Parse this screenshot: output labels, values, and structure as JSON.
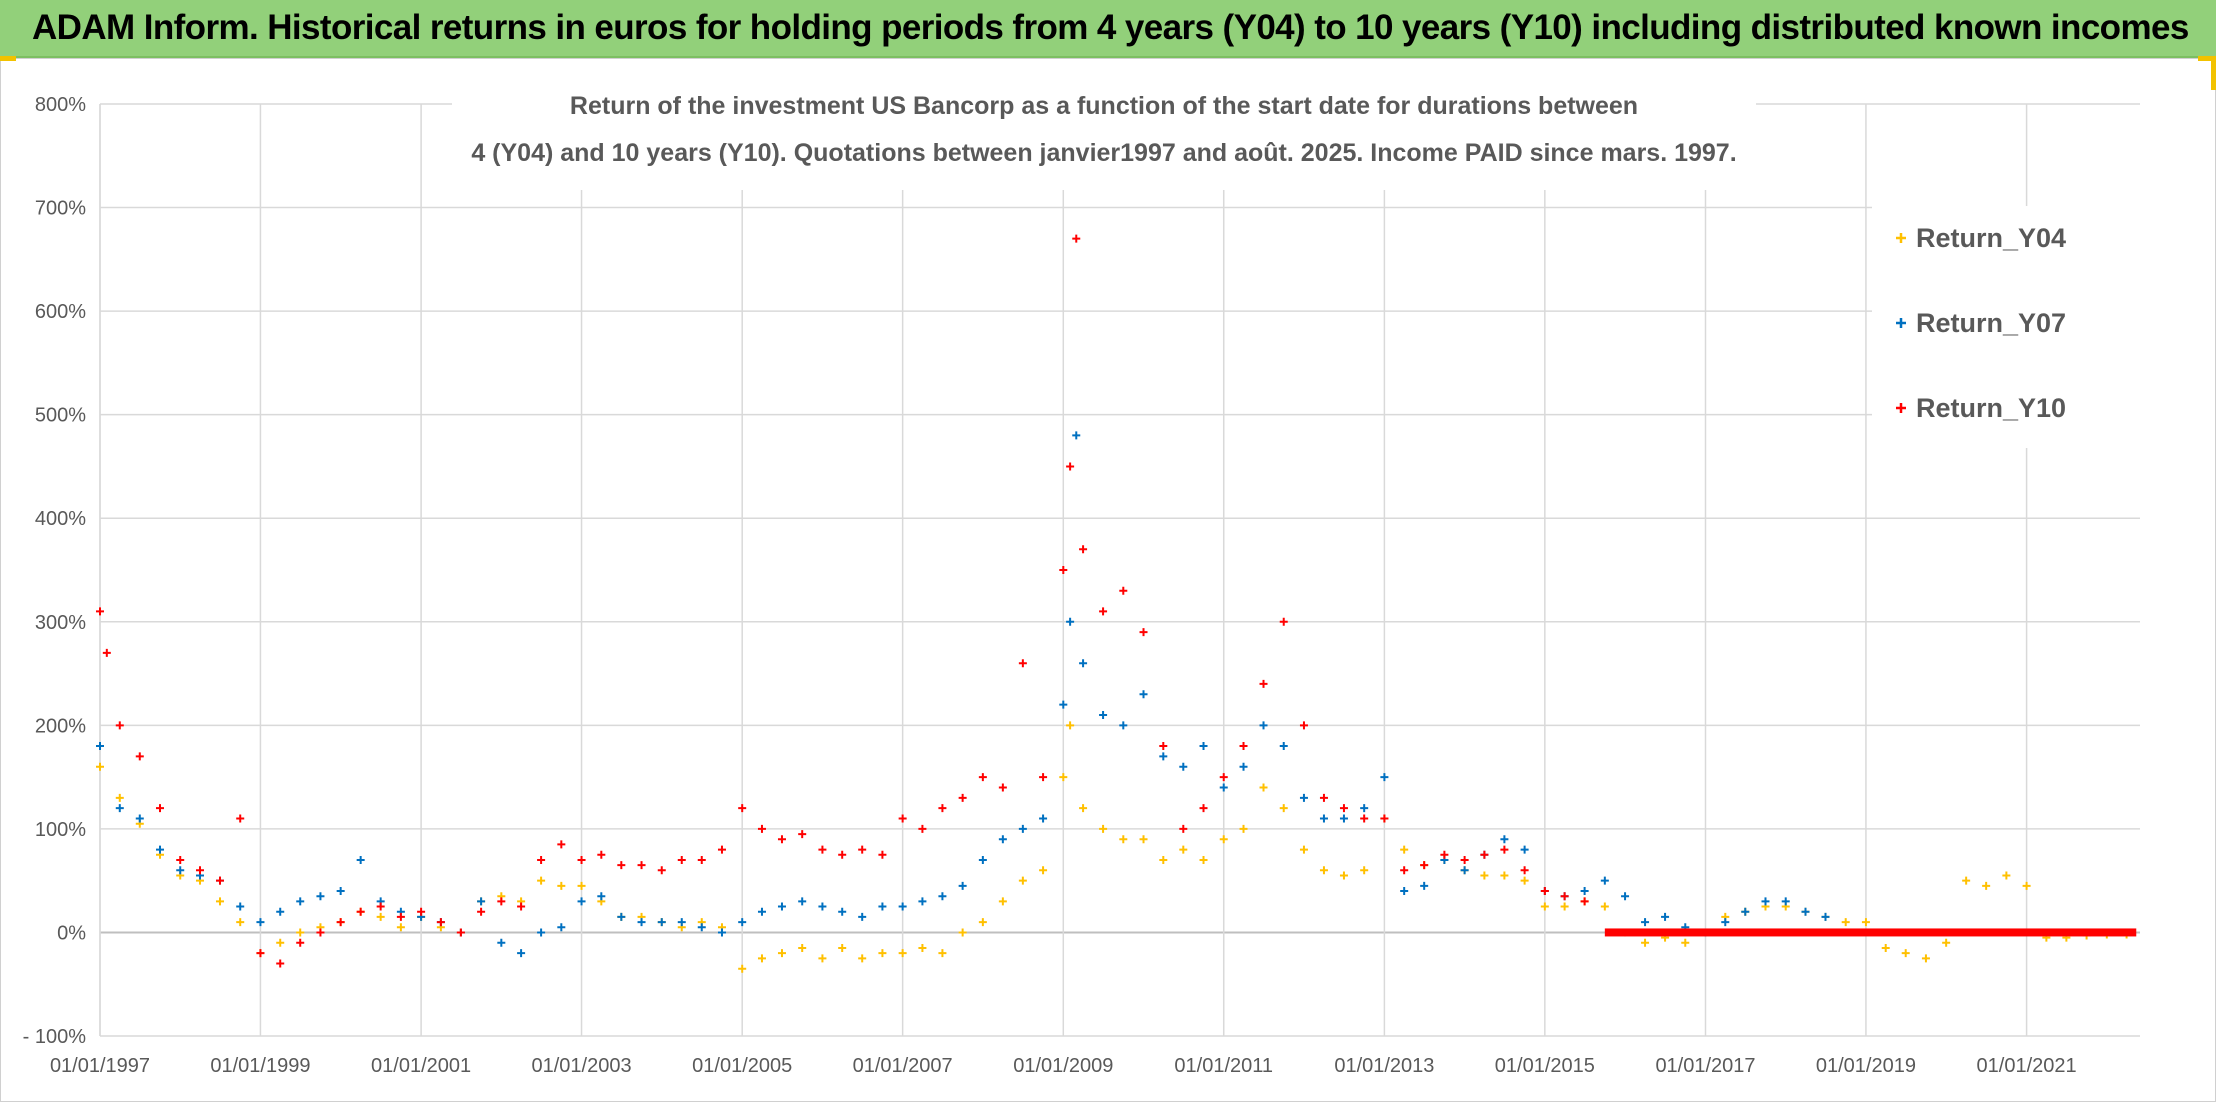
{
  "header": {
    "title": "ADAM Inform. Historical returns in euros for holding periods from 4 years (Y04) to 10 years (Y10) including distributed known incomes"
  },
  "chart_data": {
    "type": "scatter",
    "title_lines": [
      "Return of the investment US Bancorp as a function of the start date for durations between",
      "4 (Y04) and 10 years (Y10). Quotations between janvier1997 and août. 2025. Income PAID since mars. 1997."
    ],
    "xlabel": "",
    "ylabel": "",
    "xlim": [
      "1997-01-01",
      "2022-06-01"
    ],
    "ylim": [
      -100,
      800
    ],
    "y_ticks": [
      -100,
      0,
      100,
      200,
      300,
      400,
      500,
      600,
      700,
      800
    ],
    "y_tick_labels": [
      "- 100%",
      "0%",
      "100%",
      "200%",
      "300%",
      "400%",
      "500%",
      "600%",
      "700%",
      "800%"
    ],
    "x_ticks": [
      "1997-01-01",
      "1999-01-01",
      "2001-01-01",
      "2003-01-01",
      "2005-01-01",
      "2007-01-01",
      "2009-01-01",
      "2011-01-01",
      "2013-01-01",
      "2015-01-01",
      "2017-01-01",
      "2019-01-01",
      "2021-01-01"
    ],
    "x_tick_labels": [
      "01/01/1997",
      "01/01/1999",
      "01/01/2001",
      "01/01/2003",
      "01/01/2005",
      "01/01/2007",
      "01/01/2009",
      "01/01/2011",
      "01/01/2013",
      "01/01/2015",
      "01/01/2017",
      "01/01/2019",
      "01/01/2021"
    ],
    "grid": true,
    "legend_position": "top-right",
    "marker": "+",
    "series": [
      {
        "name": "Return_Y04",
        "color": "#ffc000",
        "points": [
          [
            "1997-01-01",
            160
          ],
          [
            "1997-04-01",
            130
          ],
          [
            "1997-07-01",
            105
          ],
          [
            "1997-10-01",
            75
          ],
          [
            "1998-01-01",
            55
          ],
          [
            "1998-04-01",
            50
          ],
          [
            "1998-07-01",
            30
          ],
          [
            "1998-10-01",
            10
          ],
          [
            "1999-01-01",
            -20
          ],
          [
            "1999-04-01",
            -10
          ],
          [
            "1999-07-01",
            0
          ],
          [
            "1999-10-01",
            5
          ],
          [
            "2000-01-01",
            10
          ],
          [
            "2000-04-01",
            20
          ],
          [
            "2000-07-01",
            15
          ],
          [
            "2000-10-01",
            5
          ],
          [
            "2001-01-01",
            15
          ],
          [
            "2001-04-01",
            5
          ],
          [
            "2001-07-01",
            0
          ],
          [
            "2001-10-01",
            30
          ],
          [
            "2002-01-01",
            35
          ],
          [
            "2002-04-01",
            30
          ],
          [
            "2002-07-01",
            50
          ],
          [
            "2002-10-01",
            45
          ],
          [
            "2003-01-01",
            45
          ],
          [
            "2003-04-01",
            30
          ],
          [
            "2003-07-01",
            15
          ],
          [
            "2003-10-01",
            15
          ],
          [
            "2004-01-01",
            10
          ],
          [
            "2004-04-01",
            5
          ],
          [
            "2004-07-01",
            10
          ],
          [
            "2004-10-01",
            5
          ],
          [
            "2005-01-01",
            -35
          ],
          [
            "2005-04-01",
            -25
          ],
          [
            "2005-07-01",
            -20
          ],
          [
            "2005-10-01",
            -15
          ],
          [
            "2006-01-01",
            -25
          ],
          [
            "2006-04-01",
            -15
          ],
          [
            "2006-07-01",
            -25
          ],
          [
            "2006-10-01",
            -20
          ],
          [
            "2007-01-01",
            -20
          ],
          [
            "2007-04-01",
            -15
          ],
          [
            "2007-07-01",
            -20
          ],
          [
            "2007-10-01",
            0
          ],
          [
            "2008-01-01",
            10
          ],
          [
            "2008-04-01",
            30
          ],
          [
            "2008-07-01",
            50
          ],
          [
            "2008-10-01",
            60
          ],
          [
            "2009-01-01",
            150
          ],
          [
            "2009-02-01",
            200
          ],
          [
            "2009-04-01",
            120
          ],
          [
            "2009-07-01",
            100
          ],
          [
            "2009-10-01",
            90
          ],
          [
            "2010-01-01",
            90
          ],
          [
            "2010-04-01",
            70
          ],
          [
            "2010-07-01",
            80
          ],
          [
            "2010-10-01",
            70
          ],
          [
            "2011-01-01",
            90
          ],
          [
            "2011-04-01",
            100
          ],
          [
            "2011-07-01",
            140
          ],
          [
            "2011-10-01",
            120
          ],
          [
            "2012-01-01",
            80
          ],
          [
            "2012-04-01",
            60
          ],
          [
            "2012-07-01",
            55
          ],
          [
            "2012-10-01",
            60
          ],
          [
            "2013-01-01",
            110
          ],
          [
            "2013-04-01",
            80
          ],
          [
            "2013-07-01",
            65
          ],
          [
            "2013-10-01",
            70
          ],
          [
            "2014-01-01",
            60
          ],
          [
            "2014-04-01",
            55
          ],
          [
            "2014-07-01",
            55
          ],
          [
            "2014-10-01",
            50
          ],
          [
            "2015-01-01",
            25
          ],
          [
            "2015-04-01",
            25
          ],
          [
            "2015-07-01",
            30
          ],
          [
            "2015-10-01",
            25
          ],
          [
            "2016-01-01",
            0
          ],
          [
            "2016-04-01",
            -10
          ],
          [
            "2016-07-01",
            -5
          ],
          [
            "2016-10-01",
            -10
          ],
          [
            "2017-01-01",
            0
          ],
          [
            "2017-04-01",
            15
          ],
          [
            "2017-07-01",
            20
          ],
          [
            "2017-10-01",
            25
          ],
          [
            "2018-01-01",
            25
          ],
          [
            "2018-04-01",
            20
          ],
          [
            "2018-07-01",
            15
          ],
          [
            "2018-10-01",
            10
          ],
          [
            "2019-01-01",
            10
          ],
          [
            "2019-04-01",
            -15
          ],
          [
            "2019-07-01",
            -20
          ],
          [
            "2019-10-01",
            -25
          ],
          [
            "2020-01-01",
            -10
          ],
          [
            "2020-04-01",
            50
          ],
          [
            "2020-07-01",
            45
          ],
          [
            "2020-10-01",
            55
          ],
          [
            "2021-01-01",
            45
          ],
          [
            "2021-04-01",
            -5
          ],
          [
            "2021-07-01",
            -5
          ],
          [
            "2021-10-01",
            -3
          ],
          [
            "2022-01-01",
            -2
          ],
          [
            "2022-04-01",
            -2
          ]
        ]
      },
      {
        "name": "Return_Y07",
        "color": "#0070c0",
        "points": [
          [
            "1997-01-01",
            180
          ],
          [
            "1997-04-01",
            120
          ],
          [
            "1997-07-01",
            110
          ],
          [
            "1997-10-01",
            80
          ],
          [
            "1998-01-01",
            60
          ],
          [
            "1998-04-01",
            55
          ],
          [
            "1998-07-01",
            50
          ],
          [
            "1998-10-01",
            25
          ],
          [
            "1999-01-01",
            10
          ],
          [
            "1999-04-01",
            20
          ],
          [
            "1999-07-01",
            30
          ],
          [
            "1999-10-01",
            35
          ],
          [
            "2000-01-01",
            40
          ],
          [
            "2000-04-01",
            70
          ],
          [
            "2000-07-01",
            30
          ],
          [
            "2000-10-01",
            20
          ],
          [
            "2001-01-01",
            15
          ],
          [
            "2001-04-01",
            10
          ],
          [
            "2001-07-01",
            0
          ],
          [
            "2001-10-01",
            30
          ],
          [
            "2002-01-01",
            -10
          ],
          [
            "2002-04-01",
            -20
          ],
          [
            "2002-07-01",
            0
          ],
          [
            "2002-10-01",
            5
          ],
          [
            "2003-01-01",
            30
          ],
          [
            "2003-04-01",
            35
          ],
          [
            "2003-07-01",
            15
          ],
          [
            "2003-10-01",
            10
          ],
          [
            "2004-01-01",
            10
          ],
          [
            "2004-04-01",
            10
          ],
          [
            "2004-07-01",
            5
          ],
          [
            "2004-10-01",
            0
          ],
          [
            "2005-01-01",
            10
          ],
          [
            "2005-04-01",
            20
          ],
          [
            "2005-07-01",
            25
          ],
          [
            "2005-10-01",
            30
          ],
          [
            "2006-01-01",
            25
          ],
          [
            "2006-04-01",
            20
          ],
          [
            "2006-07-01",
            15
          ],
          [
            "2006-10-01",
            25
          ],
          [
            "2007-01-01",
            25
          ],
          [
            "2007-04-01",
            30
          ],
          [
            "2007-07-01",
            35
          ],
          [
            "2007-10-01",
            45
          ],
          [
            "2008-01-01",
            70
          ],
          [
            "2008-04-01",
            90
          ],
          [
            "2008-07-01",
            100
          ],
          [
            "2008-10-01",
            110
          ],
          [
            "2009-01-01",
            220
          ],
          [
            "2009-02-01",
            300
          ],
          [
            "2009-03-01",
            480
          ],
          [
            "2009-04-01",
            260
          ],
          [
            "2009-07-01",
            210
          ],
          [
            "2009-10-01",
            200
          ],
          [
            "2010-01-01",
            230
          ],
          [
            "2010-04-01",
            170
          ],
          [
            "2010-07-01",
            160
          ],
          [
            "2010-10-01",
            180
          ],
          [
            "2011-01-01",
            140
          ],
          [
            "2011-04-01",
            160
          ],
          [
            "2011-07-01",
            200
          ],
          [
            "2011-10-01",
            180
          ],
          [
            "2012-01-01",
            130
          ],
          [
            "2012-04-01",
            110
          ],
          [
            "2012-07-01",
            110
          ],
          [
            "2012-10-01",
            120
          ],
          [
            "2013-01-01",
            150
          ],
          [
            "2013-04-01",
            40
          ],
          [
            "2013-07-01",
            45
          ],
          [
            "2013-10-01",
            70
          ],
          [
            "2014-01-01",
            60
          ],
          [
            "2014-04-01",
            75
          ],
          [
            "2014-07-01",
            90
          ],
          [
            "2014-10-01",
            80
          ],
          [
            "2015-01-01",
            40
          ],
          [
            "2015-04-01",
            35
          ],
          [
            "2015-07-01",
            40
          ],
          [
            "2015-10-01",
            50
          ],
          [
            "2016-01-01",
            35
          ],
          [
            "2016-04-01",
            10
          ],
          [
            "2016-07-01",
            15
          ],
          [
            "2016-10-01",
            5
          ],
          [
            "2017-01-01",
            0
          ],
          [
            "2017-04-01",
            10
          ],
          [
            "2017-07-01",
            20
          ],
          [
            "2017-10-01",
            30
          ],
          [
            "2018-01-01",
            30
          ],
          [
            "2018-04-01",
            20
          ],
          [
            "2018-07-01",
            15
          ]
        ]
      },
      {
        "name": "Return_Y10",
        "color": "#ff0000",
        "points": [
          [
            "1997-01-01",
            310
          ],
          [
            "1997-02-01",
            270
          ],
          [
            "1997-04-01",
            200
          ],
          [
            "1997-07-01",
            170
          ],
          [
            "1997-10-01",
            120
          ],
          [
            "1998-01-01",
            70
          ],
          [
            "1998-04-01",
            60
          ],
          [
            "1998-07-01",
            50
          ],
          [
            "1998-10-01",
            110
          ],
          [
            "1999-01-01",
            -20
          ],
          [
            "1999-04-01",
            -30
          ],
          [
            "1999-07-01",
            -10
          ],
          [
            "1999-10-01",
            0
          ],
          [
            "2000-01-01",
            10
          ],
          [
            "2000-04-01",
            20
          ],
          [
            "2000-07-01",
            25
          ],
          [
            "2000-10-01",
            15
          ],
          [
            "2001-01-01",
            20
          ],
          [
            "2001-04-01",
            10
          ],
          [
            "2001-07-01",
            0
          ],
          [
            "2001-10-01",
            20
          ],
          [
            "2002-01-01",
            30
          ],
          [
            "2002-04-01",
            25
          ],
          [
            "2002-07-01",
            70
          ],
          [
            "2002-10-01",
            85
          ],
          [
            "2003-01-01",
            70
          ],
          [
            "2003-04-01",
            75
          ],
          [
            "2003-07-01",
            65
          ],
          [
            "2003-10-01",
            65
          ],
          [
            "2004-01-01",
            60
          ],
          [
            "2004-04-01",
            70
          ],
          [
            "2004-07-01",
            70
          ],
          [
            "2004-10-01",
            80
          ],
          [
            "2005-01-01",
            120
          ],
          [
            "2005-04-01",
            100
          ],
          [
            "2005-07-01",
            90
          ],
          [
            "2005-10-01",
            95
          ],
          [
            "2006-01-01",
            80
          ],
          [
            "2006-04-01",
            75
          ],
          [
            "2006-07-01",
            80
          ],
          [
            "2006-10-01",
            75
          ],
          [
            "2007-01-01",
            110
          ],
          [
            "2007-04-01",
            100
          ],
          [
            "2007-07-01",
            120
          ],
          [
            "2007-10-01",
            130
          ],
          [
            "2008-01-01",
            150
          ],
          [
            "2008-04-01",
            140
          ],
          [
            "2008-07-01",
            260
          ],
          [
            "2008-10-01",
            150
          ],
          [
            "2009-01-01",
            350
          ],
          [
            "2009-02-01",
            450
          ],
          [
            "2009-03-01",
            670
          ],
          [
            "2009-04-01",
            370
          ],
          [
            "2009-07-01",
            310
          ],
          [
            "2009-10-01",
            330
          ],
          [
            "2010-01-01",
            290
          ],
          [
            "2010-04-01",
            180
          ],
          [
            "2010-07-01",
            100
          ],
          [
            "2010-10-01",
            120
          ],
          [
            "2011-01-01",
            150
          ],
          [
            "2011-04-01",
            180
          ],
          [
            "2011-07-01",
            240
          ],
          [
            "2011-10-01",
            300
          ],
          [
            "2012-01-01",
            200
          ],
          [
            "2012-04-01",
            130
          ],
          [
            "2012-07-01",
            120
          ],
          [
            "2012-10-01",
            110
          ],
          [
            "2013-01-01",
            110
          ],
          [
            "2013-04-01",
            60
          ],
          [
            "2013-07-01",
            65
          ],
          [
            "2013-10-01",
            75
          ],
          [
            "2014-01-01",
            70
          ],
          [
            "2014-04-01",
            75
          ],
          [
            "2014-07-01",
            80
          ],
          [
            "2014-10-01",
            60
          ],
          [
            "2015-01-01",
            40
          ],
          [
            "2015-04-01",
            35
          ],
          [
            "2015-07-01",
            30
          ]
        ],
        "flat_segment": {
          "from": "2015-10-01",
          "to": "2022-05-15",
          "value": 0
        }
      }
    ]
  }
}
